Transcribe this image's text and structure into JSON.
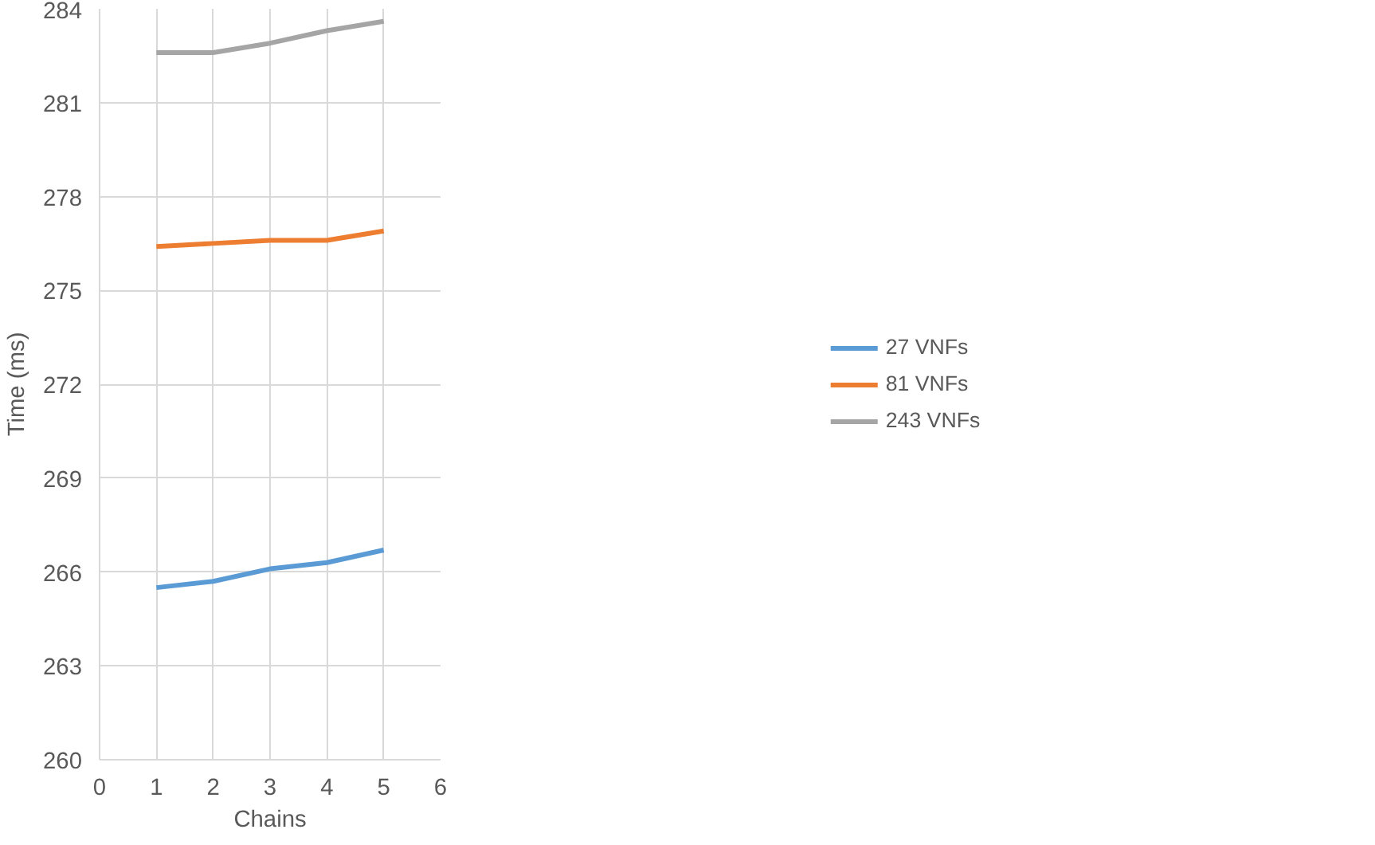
{
  "chart_data": {
    "type": "line",
    "xlabel": "Chains",
    "ylabel": "Time (ms)",
    "x": [
      1,
      2,
      3,
      4,
      5
    ],
    "series": [
      {
        "name": "27 VNFs",
        "color": "#5b9bd5",
        "values": [
          265.5,
          265.7,
          266.1,
          266.3,
          266.7
        ]
      },
      {
        "name": "81 VNFs",
        "color": "#ed7d31",
        "values": [
          276.4,
          276.5,
          276.6,
          276.6,
          276.9
        ]
      },
      {
        "name": "243 VNFs",
        "color": "#a5a5a5",
        "values": [
          282.6,
          282.6,
          282.9,
          283.3,
          283.6
        ]
      }
    ],
    "xlim": [
      0,
      6
    ],
    "xticks": [
      0,
      1,
      2,
      3,
      4,
      5,
      6
    ],
    "ylim": [
      260,
      284
    ],
    "yticks": [
      260,
      263,
      266,
      269,
      272,
      275,
      278,
      281,
      284
    ],
    "grid": true,
    "legend": "right",
    "marker": "none",
    "line_style": "solid"
  }
}
